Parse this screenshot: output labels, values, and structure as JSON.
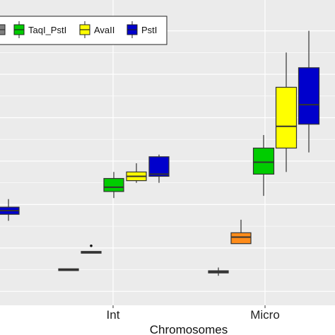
{
  "chart_data": {
    "type": "boxplot",
    "xlabel": "Chromosomes",
    "ylabel": "",
    "categories": [
      "Int",
      "Micro"
    ],
    "grid": true,
    "legend_position": "top-left",
    "legend": [
      {
        "name": "TaqI_PstI",
        "label": "TaqI_PstI",
        "color": "#00cc00"
      },
      {
        "name": "AvaII",
        "label": "AvaII",
        "color": "#ffff00"
      },
      {
        "name": "PstI",
        "label": "PstI",
        "color": "#0000cc"
      }
    ],
    "ylim": [
      0,
      12
    ],
    "boxes": [
      {
        "category": "(left, cut off)",
        "series": "PstI",
        "color": "#0000cc",
        "min": 3.25,
        "q1": 3.55,
        "median": 3.72,
        "q3": 3.88,
        "max": 4.25,
        "outliers": []
      },
      {
        "category": "Int",
        "series": "(orange)",
        "color": "#ff8c1a",
        "min": 1.0,
        "q1": 1.0,
        "median": 1.0,
        "q3": 1.0,
        "max": 1.0,
        "outliers": []
      },
      {
        "category": "Int",
        "series": "(gray)",
        "color": "#7f7f7f",
        "min": 1.8,
        "q1": 1.8,
        "median": 1.8,
        "q3": 1.8,
        "max": 1.8,
        "outliers": [
          2.1
        ]
      },
      {
        "category": "Int",
        "series": "TaqI_PstI",
        "color": "#00cc00",
        "min": 4.3,
        "q1": 4.6,
        "median": 4.8,
        "q3": 5.2,
        "max": 5.5,
        "outliers": []
      },
      {
        "category": "Int",
        "series": "AvaII",
        "color": "#ffff00",
        "min": 5.0,
        "q1": 5.1,
        "median": 5.3,
        "q3": 5.5,
        "max": 5.9,
        "outliers": []
      },
      {
        "category": "Int",
        "series": "PstI",
        "color": "#0000cc",
        "min": 5.0,
        "q1": 5.3,
        "median": 5.4,
        "q3": 6.2,
        "max": 6.3,
        "outliers": []
      },
      {
        "category": "Micro",
        "series": "(gray)",
        "color": "#7f7f7f",
        "min": 0.72,
        "q1": 0.85,
        "median": 0.9,
        "q3": 0.95,
        "max": 1.1,
        "outliers": []
      },
      {
        "category": "Micro",
        "series": "(orange)",
        "color": "#ff8c1a",
        "min": 2.2,
        "q1": 2.2,
        "median": 2.5,
        "q3": 2.7,
        "max": 3.3,
        "outliers": []
      },
      {
        "category": "Micro",
        "series": "TaqI_PstI",
        "color": "#00cc00",
        "min": 4.4,
        "q1": 5.4,
        "median": 5.95,
        "q3": 6.6,
        "max": 7.2,
        "outliers": []
      },
      {
        "category": "Micro",
        "series": "AvaII",
        "color": "#ffff00",
        "min": 5.5,
        "q1": 6.6,
        "median": 7.6,
        "q3": 9.4,
        "max": 11.0,
        "outliers": []
      },
      {
        "category": "Micro",
        "series": "PstI",
        "color": "#0000cc",
        "min": 6.4,
        "q1": 7.7,
        "median": 8.6,
        "q3": 10.3,
        "max": 12.0,
        "outliers": []
      }
    ]
  }
}
